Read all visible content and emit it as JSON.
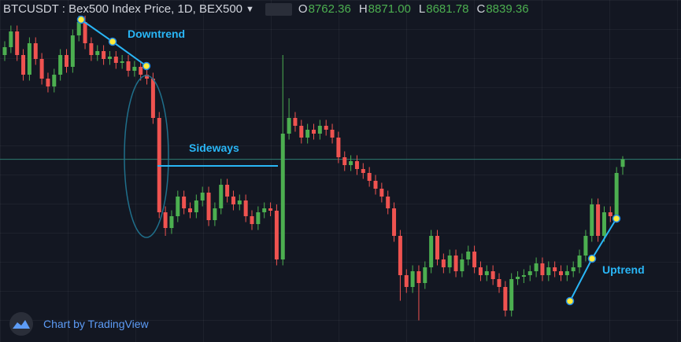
{
  "chart_data": {
    "type": "candlestick",
    "title": "BTCUSDT : Bex500 Index Price, 1D, BEX500",
    "ohlc_legend": [
      {
        "key": "O",
        "text": "8762.36"
      },
      {
        "key": "H",
        "text": "8871.00"
      },
      {
        "key": "L",
        "text": "8681.78"
      },
      {
        "key": "C",
        "text": "8839.36"
      }
    ],
    "annotations": [
      "Downtrend",
      "Sideways",
      "Uptrend"
    ],
    "credit": "Chart by TradingView",
    "up_color": "#4caf50",
    "down_color": "#ef5350",
    "last_price_color": "#2e7d73",
    "ylim": [
      7100,
      10300
    ],
    "open": [
      9900,
      9980,
      10140,
      9900,
      9700,
      10020,
      9860,
      9660,
      9580,
      9700,
      9900,
      9780,
      10100,
      10236,
      10020,
      9900,
      9940,
      9860,
      9884,
      9820,
      9836,
      9740,
      9780,
      9700,
      9660,
      9260,
      8300,
      8140,
      8260,
      8460,
      8340,
      8300,
      8420,
      8500,
      8220,
      8340,
      8580,
      8460,
      8380,
      8420,
      8260,
      8180,
      8300,
      8340,
      8316,
      7820,
      9100,
      9260,
      9180,
      9060,
      9140,
      9100,
      9180,
      9140,
      9060,
      8860,
      8780,
      8820,
      8740,
      8700,
      8620,
      8540,
      8460,
      8340,
      8060,
      7660,
      7540,
      7700,
      7580,
      7740,
      8060,
      7820,
      7740,
      7860,
      7700,
      7820,
      7900,
      7740,
      7660,
      7700,
      7620,
      7540,
      7300,
      7620,
      7644,
      7660,
      7700,
      7780,
      7660,
      7740,
      7700,
      7660,
      7700,
      7740,
      7860,
      8060,
      8380,
      8060,
      8300,
      8260,
      8762.36
    ],
    "high": [
      10040,
      10200,
      10200,
      9960,
      10080,
      10080,
      9920,
      9720,
      9760,
      9960,
      9960,
      10160,
      10300,
      10300,
      10080,
      10000,
      10000,
      9940,
      9940,
      9900,
      9900,
      9840,
      9840,
      9760,
      9720,
      9320,
      8360,
      8320,
      8520,
      8520,
      8400,
      8480,
      8560,
      8560,
      8400,
      8640,
      8640,
      8520,
      8480,
      8480,
      8320,
      8360,
      8400,
      8400,
      8380,
      9900,
      9460,
      9320,
      9240,
      9200,
      9200,
      9240,
      9240,
      9200,
      9120,
      8920,
      8880,
      8880,
      8800,
      8760,
      8680,
      8600,
      8520,
      8400,
      8120,
      7720,
      7760,
      7760,
      7800,
      8120,
      8120,
      7880,
      7920,
      7920,
      7880,
      7960,
      7960,
      7800,
      7760,
      7760,
      7680,
      7600,
      7680,
      7700,
      7720,
      7760,
      7840,
      7840,
      7800,
      7800,
      7760,
      7760,
      7800,
      7920,
      8120,
      8440,
      8440,
      8360,
      8360,
      8760,
      8871
    ],
    "low": [
      9840,
      9920,
      9840,
      9640,
      9640,
      9800,
      9600,
      9520,
      9520,
      9640,
      9720,
      9720,
      10040,
      9960,
      9840,
      9840,
      9800,
      9800,
      9760,
      9760,
      9680,
      9680,
      9640,
      9600,
      9200,
      8240,
      8060,
      8080,
      8200,
      8280,
      8240,
      8240,
      8360,
      8160,
      8160,
      8280,
      8400,
      8320,
      8320,
      8200,
      8120,
      8120,
      8240,
      8260,
      7760,
      7760,
      9040,
      9120,
      9000,
      9000,
      9040,
      9040,
      9080,
      9000,
      8800,
      8720,
      8720,
      8680,
      8640,
      8560,
      8480,
      8400,
      8280,
      8000,
      7400,
      7480,
      7480,
      7200,
      7520,
      7680,
      7760,
      7680,
      7680,
      7640,
      7640,
      7760,
      7680,
      7600,
      7600,
      7560,
      7480,
      7240,
      7240,
      7560,
      7580,
      7600,
      7640,
      7600,
      7600,
      7640,
      7600,
      7600,
      7640,
      7680,
      7800,
      8000,
      8000,
      8000,
      8200,
      8200,
      8681.78
    ],
    "close": [
      9980,
      10140,
      9900,
      9700,
      10020,
      9860,
      9660,
      9580,
      9700,
      9900,
      9780,
      10100,
      10236,
      10020,
      9900,
      9940,
      9860,
      9884,
      9820,
      9836,
      9740,
      9780,
      9700,
      9660,
      9260,
      8300,
      8140,
      8260,
      8460,
      8340,
      8300,
      8420,
      8500,
      8220,
      8340,
      8580,
      8460,
      8380,
      8420,
      8260,
      8180,
      8300,
      8340,
      8316,
      7820,
      9100,
      9260,
      9180,
      9060,
      9140,
      9100,
      9180,
      9140,
      9060,
      8860,
      8780,
      8820,
      8740,
      8700,
      8620,
      8540,
      8460,
      8340,
      8060,
      7660,
      7540,
      7700,
      7580,
      7740,
      8060,
      7820,
      7740,
      7860,
      7700,
      7820,
      7900,
      7740,
      7660,
      7700,
      7620,
      7540,
      7300,
      7620,
      7644,
      7660,
      7700,
      7780,
      7660,
      7740,
      7700,
      7660,
      7700,
      7740,
      7860,
      8060,
      8380,
      8060,
      8300,
      8260,
      8700,
      8839.36
    ]
  }
}
